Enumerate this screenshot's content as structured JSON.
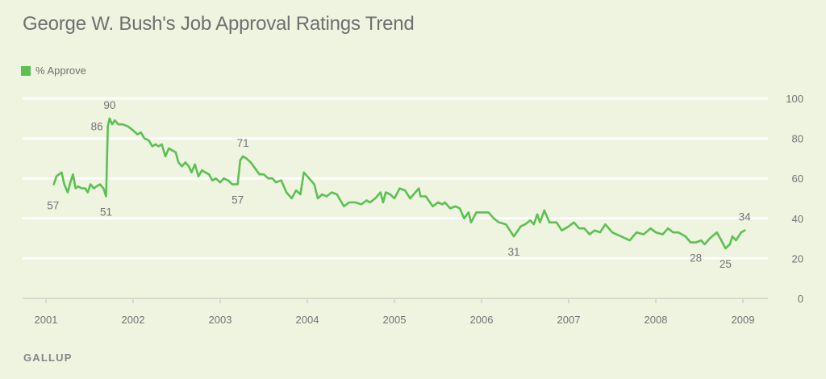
{
  "chart_data": {
    "type": "line",
    "title": "George W. Bush's Job Approval Ratings Trend",
    "xlabel": "",
    "ylabel": "",
    "xlim": [
      2000.9,
      2009.3
    ],
    "ylim": [
      0,
      100
    ],
    "y_ticks": [
      0,
      20,
      40,
      60,
      80,
      100
    ],
    "x_ticks": [
      2001,
      2002,
      2003,
      2004,
      2005,
      2006,
      2007,
      2008,
      2009
    ],
    "x_tick_labels": [
      "2001",
      "2002",
      "2003",
      "2004",
      "2005",
      "2006",
      "2007",
      "2008",
      "2009"
    ],
    "y_axis_side": "right",
    "grid": true,
    "legend": {
      "placement": "top-left",
      "entries": [
        {
          "name": "% Approve",
          "color": "#5cc052"
        }
      ]
    },
    "series": [
      {
        "name": "% Approve",
        "color": "#5cc052",
        "points": [
          [
            2001.09,
            57
          ],
          [
            2001.12,
            61
          ],
          [
            2001.15,
            62
          ],
          [
            2001.18,
            63
          ],
          [
            2001.21,
            57
          ],
          [
            2001.25,
            53
          ],
          [
            2001.28,
            58
          ],
          [
            2001.31,
            62
          ],
          [
            2001.34,
            55
          ],
          [
            2001.37,
            56
          ],
          [
            2001.41,
            55
          ],
          [
            2001.45,
            55
          ],
          [
            2001.48,
            53
          ],
          [
            2001.51,
            57
          ],
          [
            2001.55,
            55
          ],
          [
            2001.58,
            56
          ],
          [
            2001.62,
            57
          ],
          [
            2001.66,
            55
          ],
          [
            2001.69,
            51
          ],
          [
            2001.71,
            86
          ],
          [
            2001.73,
            90
          ],
          [
            2001.76,
            87
          ],
          [
            2001.79,
            89
          ],
          [
            2001.83,
            87
          ],
          [
            2001.88,
            87
          ],
          [
            2001.94,
            86
          ],
          [
            2002.0,
            84
          ],
          [
            2002.05,
            82
          ],
          [
            2002.09,
            83
          ],
          [
            2002.13,
            80
          ],
          [
            2002.18,
            79
          ],
          [
            2002.22,
            76
          ],
          [
            2002.26,
            77
          ],
          [
            2002.29,
            76
          ],
          [
            2002.33,
            77
          ],
          [
            2002.37,
            71
          ],
          [
            2002.41,
            75
          ],
          [
            2002.45,
            74
          ],
          [
            2002.49,
            73
          ],
          [
            2002.52,
            68
          ],
          [
            2002.56,
            66
          ],
          [
            2002.6,
            68
          ],
          [
            2002.64,
            66
          ],
          [
            2002.67,
            63
          ],
          [
            2002.71,
            67
          ],
          [
            2002.75,
            61
          ],
          [
            2002.79,
            64
          ],
          [
            2002.83,
            63
          ],
          [
            2002.87,
            62
          ],
          [
            2002.91,
            59
          ],
          [
            2002.95,
            60
          ],
          [
            2003.0,
            58
          ],
          [
            2003.04,
            60
          ],
          [
            2003.09,
            59
          ],
          [
            2003.14,
            57
          ],
          [
            2003.2,
            57
          ],
          [
            2003.23,
            69
          ],
          [
            2003.26,
            71
          ],
          [
            2003.3,
            70
          ],
          [
            2003.35,
            68
          ],
          [
            2003.4,
            65
          ],
          [
            2003.45,
            62
          ],
          [
            2003.5,
            62
          ],
          [
            2003.55,
            60
          ],
          [
            2003.6,
            60
          ],
          [
            2003.64,
            58
          ],
          [
            2003.7,
            59
          ],
          [
            2003.76,
            53
          ],
          [
            2003.82,
            50
          ],
          [
            2003.87,
            54
          ],
          [
            2003.92,
            52
          ],
          [
            2003.96,
            63
          ],
          [
            2004.02,
            60
          ],
          [
            2004.08,
            57
          ],
          [
            2004.12,
            50
          ],
          [
            2004.17,
            52
          ],
          [
            2004.22,
            51
          ],
          [
            2004.28,
            53
          ],
          [
            2004.34,
            52
          ],
          [
            2004.38,
            49
          ],
          [
            2004.42,
            46
          ],
          [
            2004.48,
            48
          ],
          [
            2004.55,
            48
          ],
          [
            2004.62,
            47
          ],
          [
            2004.68,
            49
          ],
          [
            2004.72,
            48
          ],
          [
            2004.78,
            50
          ],
          [
            2004.84,
            53
          ],
          [
            2004.87,
            48
          ],
          [
            2004.9,
            53
          ],
          [
            2004.95,
            52
          ],
          [
            2005.0,
            50
          ],
          [
            2005.06,
            55
          ],
          [
            2005.12,
            54
          ],
          [
            2005.18,
            50
          ],
          [
            2005.22,
            52
          ],
          [
            2005.28,
            55
          ],
          [
            2005.3,
            51
          ],
          [
            2005.36,
            51
          ],
          [
            2005.44,
            46
          ],
          [
            2005.5,
            48
          ],
          [
            2005.55,
            47
          ],
          [
            2005.58,
            48
          ],
          [
            2005.64,
            45
          ],
          [
            2005.7,
            46
          ],
          [
            2005.75,
            45
          ],
          [
            2005.8,
            40
          ],
          [
            2005.85,
            43
          ],
          [
            2005.88,
            38
          ],
          [
            2005.94,
            43
          ],
          [
            2006.0,
            43
          ],
          [
            2006.08,
            43
          ],
          [
            2006.14,
            40
          ],
          [
            2006.2,
            38
          ],
          [
            2006.28,
            37
          ],
          [
            2006.37,
            31
          ],
          [
            2006.45,
            36
          ],
          [
            2006.5,
            37
          ],
          [
            2006.56,
            39
          ],
          [
            2006.6,
            37
          ],
          [
            2006.64,
            42
          ],
          [
            2006.67,
            38
          ],
          [
            2006.72,
            44
          ],
          [
            2006.78,
            38
          ],
          [
            2006.86,
            38
          ],
          [
            2006.92,
            34
          ],
          [
            2007.0,
            36
          ],
          [
            2007.06,
            38
          ],
          [
            2007.12,
            35
          ],
          [
            2007.18,
            35
          ],
          [
            2007.24,
            32
          ],
          [
            2007.3,
            34
          ],
          [
            2007.36,
            33
          ],
          [
            2007.42,
            37
          ],
          [
            2007.5,
            33
          ],
          [
            2007.6,
            31
          ],
          [
            2007.7,
            29
          ],
          [
            2007.78,
            33
          ],
          [
            2007.86,
            32
          ],
          [
            2007.94,
            35
          ],
          [
            2008.0,
            33
          ],
          [
            2008.08,
            32
          ],
          [
            2008.14,
            35
          ],
          [
            2008.2,
            33
          ],
          [
            2008.26,
            33
          ],
          [
            2008.34,
            31
          ],
          [
            2008.4,
            28
          ],
          [
            2008.46,
            28
          ],
          [
            2008.52,
            29
          ],
          [
            2008.56,
            27
          ],
          [
            2008.62,
            30
          ],
          [
            2008.7,
            33
          ],
          [
            2008.74,
            30
          ],
          [
            2008.8,
            25
          ],
          [
            2008.85,
            27
          ],
          [
            2008.88,
            31
          ],
          [
            2008.92,
            29
          ],
          [
            2008.98,
            33
          ],
          [
            2009.02,
            34
          ]
        ]
      }
    ],
    "annotations": [
      {
        "label": "57",
        "x": 2001.09,
        "y": 57,
        "position": "below-left"
      },
      {
        "label": "90",
        "x": 2001.73,
        "y": 90,
        "position": "above"
      },
      {
        "label": "86",
        "x": 2001.71,
        "y": 86,
        "position": "left"
      },
      {
        "label": "51",
        "x": 2001.69,
        "y": 51,
        "position": "below"
      },
      {
        "label": "71",
        "x": 2003.26,
        "y": 71,
        "position": "above"
      },
      {
        "label": "57",
        "x": 2003.2,
        "y": 57,
        "position": "below"
      },
      {
        "label": "31",
        "x": 2006.37,
        "y": 31,
        "position": "below"
      },
      {
        "label": "28",
        "x": 2008.46,
        "y": 28,
        "position": "below"
      },
      {
        "label": "25",
        "x": 2008.8,
        "y": 25,
        "position": "below"
      },
      {
        "label": "34",
        "x": 2009.02,
        "y": 34,
        "position": "above"
      }
    ],
    "source": "GALLUP"
  },
  "header": {
    "title": "George W. Bush's Job Approval Ratings Trend"
  },
  "legend": {
    "label": "% Approve",
    "color": "#5cc052"
  },
  "footer": {
    "source": "GALLUP"
  },
  "colors": {
    "background": "#eef4e0",
    "line": "#5cc052",
    "grid": "#ffffff",
    "axis": "#d6dbd0",
    "text": "#737373"
  }
}
